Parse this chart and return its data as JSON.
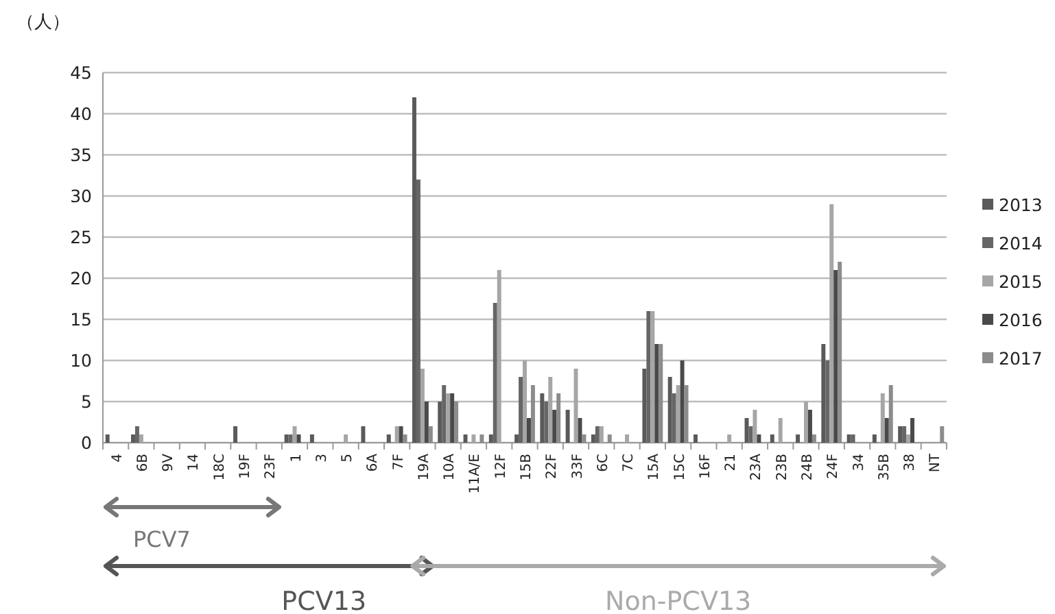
{
  "chart_data": {
    "type": "bar",
    "ylabel": "（人）",
    "categories": [
      "4",
      "6B",
      "9V",
      "14",
      "18C",
      "19F",
      "23F",
      "1",
      "3",
      "5",
      "6A",
      "7F",
      "19A",
      "10A",
      "11A/E",
      "12F",
      "15B",
      "22F",
      "33F",
      "6C",
      "7C",
      "15A",
      "15C",
      "16F",
      "21",
      "23A",
      "23B",
      "24B",
      "24F",
      "34",
      "35B",
      "38",
      "NT"
    ],
    "series": [
      {
        "name": "2013",
        "color": "#5a5a5a",
        "values": [
          1,
          1,
          0,
          0,
          0,
          2,
          0,
          1,
          1,
          0,
          2,
          1,
          42,
          5,
          1,
          1,
          1,
          6,
          4,
          1,
          0,
          9,
          8,
          1,
          0,
          3,
          1,
          1,
          12,
          1,
          1,
          2,
          0
        ]
      },
      {
        "name": "2014",
        "color": "#666666",
        "values": [
          0,
          2,
          0,
          0,
          0,
          0,
          0,
          1,
          0,
          0,
          0,
          0,
          32,
          7,
          0,
          17,
          8,
          5,
          0,
          2,
          0,
          16,
          6,
          0,
          0,
          2,
          0,
          0,
          10,
          1,
          0,
          2,
          0
        ]
      },
      {
        "name": "2015",
        "color": "#a6a6a6",
        "values": [
          0,
          1,
          0,
          0,
          0,
          0,
          0,
          2,
          0,
          1,
          0,
          2,
          9,
          6,
          1,
          21,
          10,
          8,
          9,
          2,
          1,
          16,
          7,
          0,
          1,
          4,
          3,
          5,
          29,
          0,
          6,
          1,
          0
        ]
      },
      {
        "name": "2016",
        "color": "#4a4a4a",
        "values": [
          0,
          0,
          0,
          0,
          0,
          0,
          0,
          1,
          0,
          0,
          0,
          2,
          5,
          6,
          0,
          0,
          3,
          4,
          3,
          0,
          0,
          12,
          10,
          0,
          0,
          1,
          0,
          4,
          21,
          0,
          3,
          3,
          0
        ]
      },
      {
        "name": "2017",
        "color": "#8c8c8c",
        "values": [
          0,
          0,
          0,
          0,
          0,
          0,
          0,
          0,
          0,
          0,
          0,
          1,
          2,
          5,
          1,
          0,
          7,
          6,
          1,
          1,
          0,
          12,
          7,
          0,
          0,
          0,
          0,
          1,
          22,
          0,
          7,
          0,
          2
        ]
      }
    ],
    "ylim": [
      0,
      45
    ],
    "yticks": [
      0,
      5,
      10,
      15,
      20,
      25,
      30,
      35,
      40,
      45
    ],
    "grid": "y",
    "legend": "right",
    "annotations": [
      "PCV7",
      "PCV13",
      "Non-PCV13"
    ]
  }
}
